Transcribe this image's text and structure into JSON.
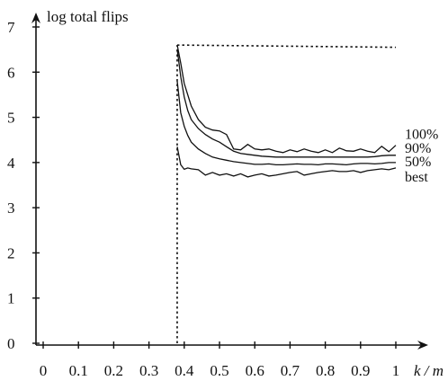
{
  "chart_data": {
    "type": "line",
    "title": "",
    "ylabel": "log total flips",
    "xlabel": "k / m",
    "xlim": [
      0,
      1
    ],
    "ylim": [
      0,
      7
    ],
    "xticks": [
      0,
      0.1,
      0.2,
      0.3,
      0.4,
      0.5,
      0.6,
      0.7,
      0.8,
      0.9,
      1
    ],
    "xtick_labels": [
      "0",
      "0.1",
      "0.2",
      "0.3",
      "0.4",
      "0.5",
      "0.6",
      "0.7",
      "0.8",
      "0.9",
      "1"
    ],
    "yticks": [
      0,
      1,
      2,
      3,
      4,
      5,
      6,
      7
    ],
    "ytick_labels": [
      "0",
      "1",
      "2",
      "3",
      "4",
      "5",
      "6",
      "7"
    ],
    "grid": false,
    "legend": "labels at right end of each series",
    "x": [
      0.38,
      0.39,
      0.4,
      0.41,
      0.42,
      0.44,
      0.46,
      0.48,
      0.5,
      0.52,
      0.54,
      0.56,
      0.58,
      0.6,
      0.62,
      0.64,
      0.66,
      0.68,
      0.7,
      0.72,
      0.74,
      0.76,
      0.78,
      0.8,
      0.82,
      0.84,
      0.86,
      0.88,
      0.9,
      0.92,
      0.94,
      0.96,
      0.98,
      1.0
    ],
    "series": [
      {
        "name": "100%",
        "values": [
          6.6,
          6.2,
          5.75,
          5.5,
          5.25,
          4.95,
          4.78,
          4.72,
          4.7,
          4.62,
          4.3,
          4.28,
          4.4,
          4.3,
          4.28,
          4.3,
          4.25,
          4.22,
          4.28,
          4.24,
          4.3,
          4.25,
          4.22,
          4.28,
          4.22,
          4.32,
          4.26,
          4.25,
          4.3,
          4.25,
          4.22,
          4.36,
          4.24,
          4.38
        ]
      },
      {
        "name": "90%",
        "values": [
          6.5,
          5.9,
          5.45,
          5.15,
          4.95,
          4.75,
          4.62,
          4.52,
          4.45,
          4.35,
          4.25,
          4.2,
          4.18,
          4.16,
          4.14,
          4.13,
          4.12,
          4.12,
          4.12,
          4.12,
          4.12,
          4.12,
          4.12,
          4.12,
          4.12,
          4.12,
          4.12,
          4.12,
          4.12,
          4.12,
          4.13,
          4.15,
          4.16,
          4.16
        ]
      },
      {
        "name": "50%",
        "values": [
          5.8,
          5.1,
          4.8,
          4.6,
          4.45,
          4.3,
          4.2,
          4.12,
          4.08,
          4.05,
          4.02,
          4.0,
          3.98,
          3.96,
          3.96,
          3.97,
          3.95,
          3.95,
          3.96,
          3.97,
          3.96,
          3.96,
          3.95,
          3.97,
          3.97,
          3.96,
          3.95,
          3.97,
          3.98,
          3.98,
          3.97,
          3.98,
          4.0,
          4.0
        ]
      },
      {
        "name": "best",
        "values": [
          4.35,
          3.95,
          3.85,
          3.88,
          3.86,
          3.84,
          3.72,
          3.78,
          3.72,
          3.75,
          3.7,
          3.75,
          3.68,
          3.72,
          3.75,
          3.7,
          3.72,
          3.75,
          3.78,
          3.8,
          3.72,
          3.75,
          3.78,
          3.8,
          3.82,
          3.8,
          3.8,
          3.82,
          3.78,
          3.82,
          3.84,
          3.86,
          3.84,
          3.88
        ]
      }
    ],
    "threshold": {
      "x": 0.38,
      "y_top": 6.6,
      "x_end": 1.0,
      "y_end": 6.55,
      "style": "dotted"
    }
  }
}
